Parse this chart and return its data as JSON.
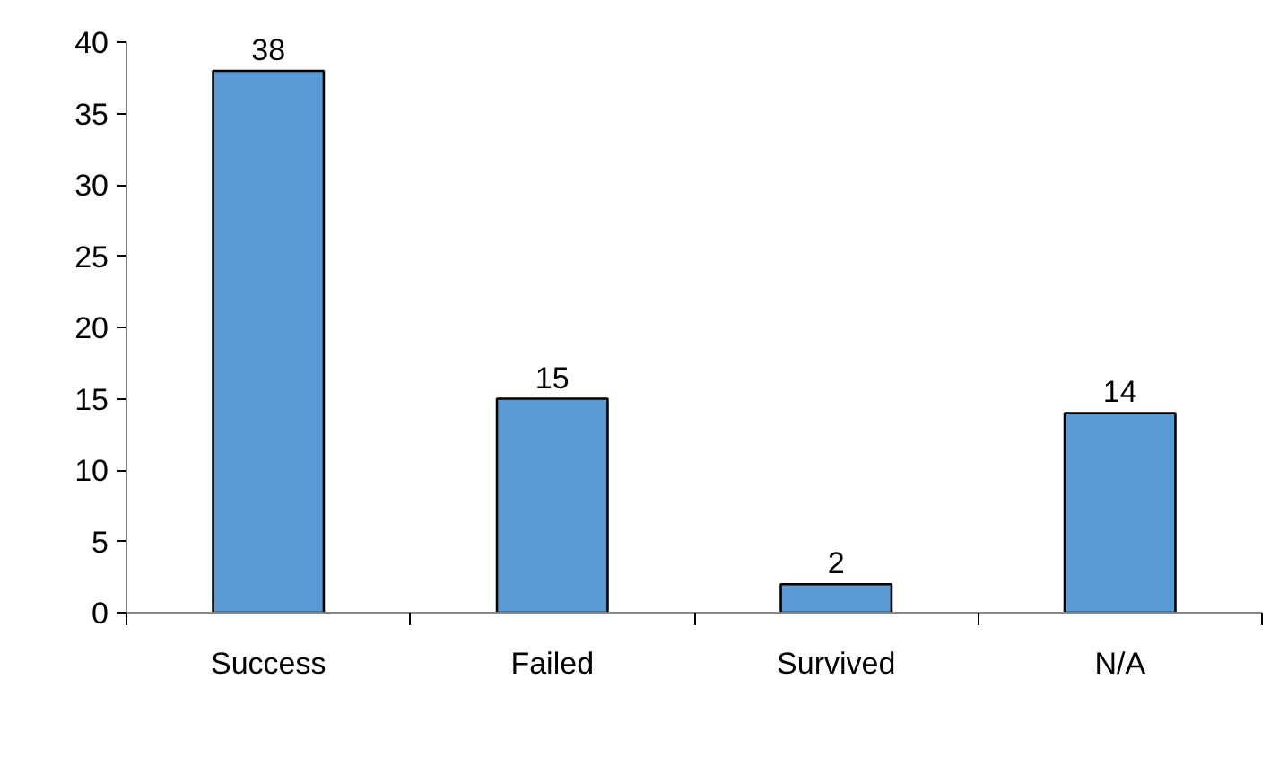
{
  "chart_data": {
    "type": "bar",
    "categories": [
      "Success",
      "Failed",
      "Survived",
      "N/A"
    ],
    "values": [
      38,
      15,
      2,
      14
    ],
    "color": "#5b9bd5",
    "ylim": [
      0,
      40
    ],
    "yticks": [
      0,
      5,
      10,
      15,
      20,
      25,
      30,
      35,
      40
    ],
    "data_labels": true,
    "grid": false
  }
}
